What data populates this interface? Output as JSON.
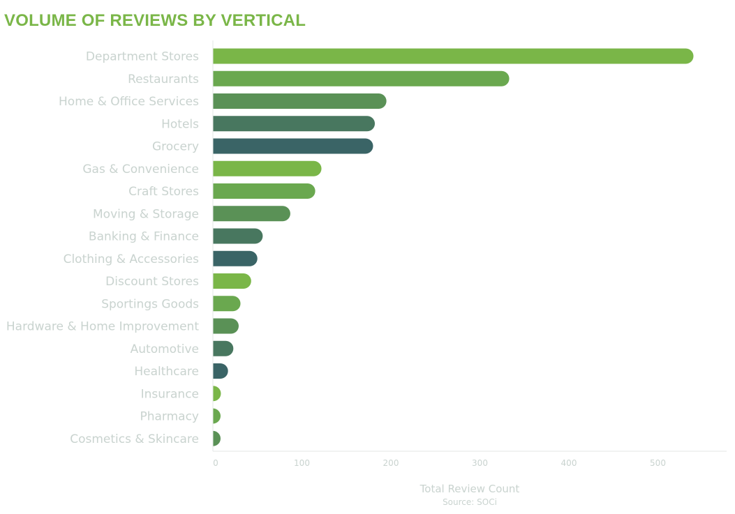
{
  "chart_data": {
    "type": "bar",
    "orientation": "horizontal",
    "title": "VOLUME OF REVIEWS BY VERTICAL",
    "xlabel": "Total Review Count",
    "source": "Source: SOCi",
    "xlim": [
      0,
      590
    ],
    "xticks": [
      0,
      100,
      200,
      300,
      400,
      500
    ],
    "grid": false,
    "categories": [
      "Department Stores",
      "Restaurants",
      "Home & Office Services",
      "Hotels",
      "Grocery",
      "Gas & Convenience",
      "Craft Stores",
      "Moving & Storage",
      "Banking & Finance",
      "Clothing & Accessories",
      "Discount Stores",
      "Sportings Goods",
      "Hardware & Home Improvement",
      "Automotive",
      "Healthcare",
      "Insurance",
      "Pharmacy",
      "Cosmetics & Skincare"
    ],
    "values": [
      540,
      333,
      195,
      182,
      180,
      122,
      115,
      87,
      56,
      50,
      43,
      31,
      29,
      23,
      17,
      9,
      5,
      5
    ],
    "bar_colors": [
      "#7ab648",
      "#6aa84f",
      "#5a9156",
      "#48775f",
      "#3a6466",
      "#7ab648",
      "#6aa84f",
      "#5a9156",
      "#48775f",
      "#3a6466",
      "#7ab648",
      "#6aa84f",
      "#5a9156",
      "#48775f",
      "#3a6466",
      "#7ab648",
      "#6aa84f",
      "#5a9156"
    ]
  }
}
